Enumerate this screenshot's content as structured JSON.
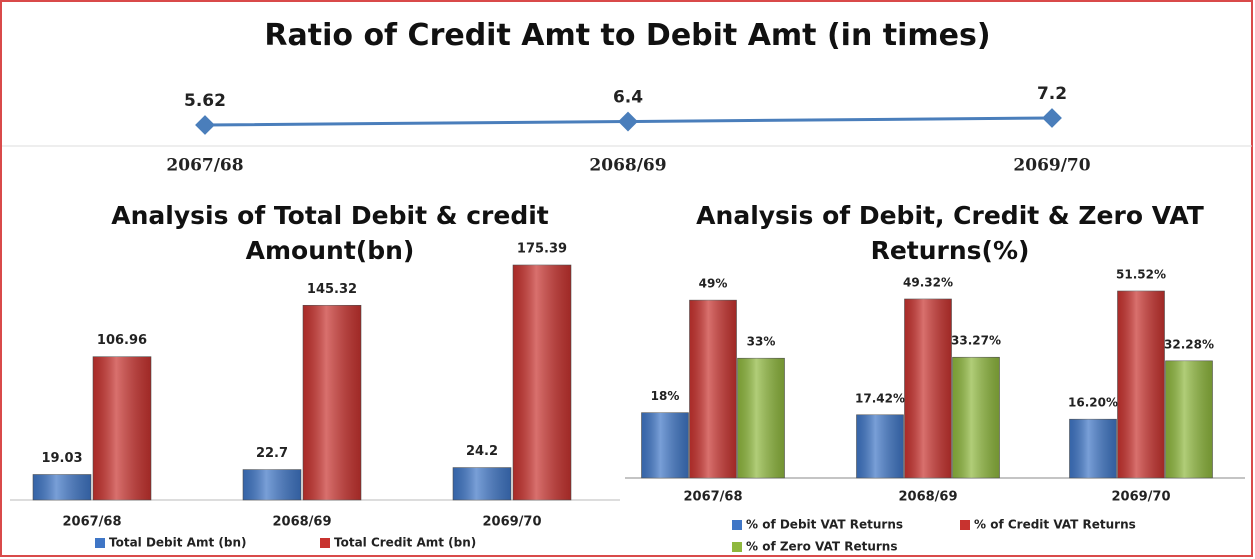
{
  "chart_data": [
    {
      "type": "line",
      "title": "Ratio of Credit Amt to Debit Amt (in times)",
      "categories": [
        "2067/68",
        "2068/69",
        "2069/70"
      ],
      "values": [
        5.62,
        6.4,
        7.2
      ],
      "color": "#4a7ebb"
    },
    {
      "type": "bar",
      "title": "Analysis of Total Debit & credit Amount(bn)",
      "categories": [
        "2067/68",
        "2068/69",
        "2069/70"
      ],
      "series": [
        {
          "name": "Total Debit Amt (bn)",
          "color": "#3f76c6",
          "values": [
            19.03,
            22.7,
            24.2
          ]
        },
        {
          "name": "Total Credit Amt (bn)",
          "color": "#c8332f",
          "values": [
            106.96,
            145.32,
            175.39
          ]
        }
      ]
    },
    {
      "type": "bar",
      "title": "Analysis of Debit, Credit & Zero VAT Returns(%)",
      "categories": [
        "2067/68",
        "2068/69",
        "2069/70"
      ],
      "series": [
        {
          "name": "% of Debit VAT Returns",
          "color": "#3f76c6",
          "values": [
            18,
            17.42,
            16.2
          ],
          "value_labels": [
            "18%",
            "17.42%",
            "16.20%"
          ]
        },
        {
          "name": "% of Credit VAT Returns",
          "color": "#c8332f",
          "values": [
            49,
            49.32,
            51.52
          ],
          "value_labels": [
            "49%",
            "49.32%",
            "51.52%"
          ]
        },
        {
          "name": "% of Zero VAT Returns",
          "color": "#8fb83e",
          "values": [
            33,
            33.27,
            32.28
          ],
          "value_labels": [
            "33%",
            "33.27%",
            "32.28%"
          ]
        }
      ]
    }
  ]
}
